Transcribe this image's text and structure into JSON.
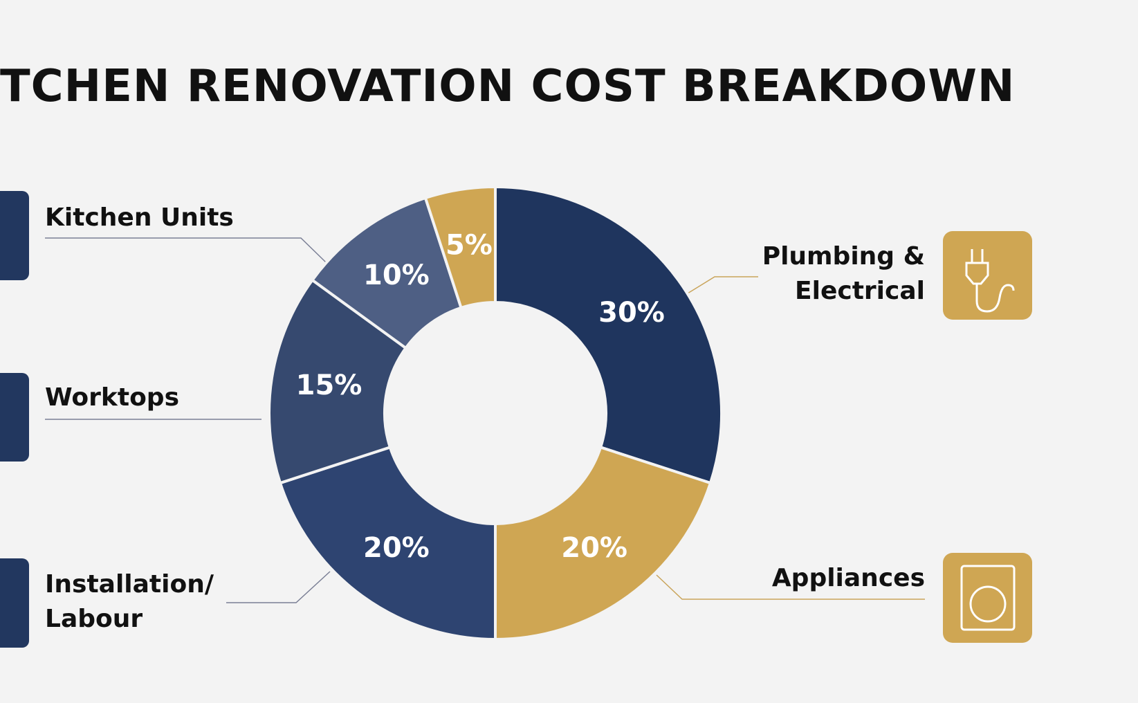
{
  "chart_data": {
    "type": "donut",
    "title": "TCHEN RENOVATION COST BREAKDOWN",
    "categories": [
      "Plumbing &\nElectrical",
      "Appliances",
      "Installation/\nLabour",
      "Worktops",
      "Kitchen Units",
      null
    ],
    "values": [
      30,
      20,
      20,
      15,
      10,
      5
    ],
    "value_labels": [
      "30%",
      "20%",
      "20%",
      "15%",
      "10%",
      "5%"
    ],
    "colors": [
      "#1f355e",
      "#cfa653",
      "#2e4471",
      "#36496f",
      "#4e5f84",
      "#cfa653"
    ]
  }
}
